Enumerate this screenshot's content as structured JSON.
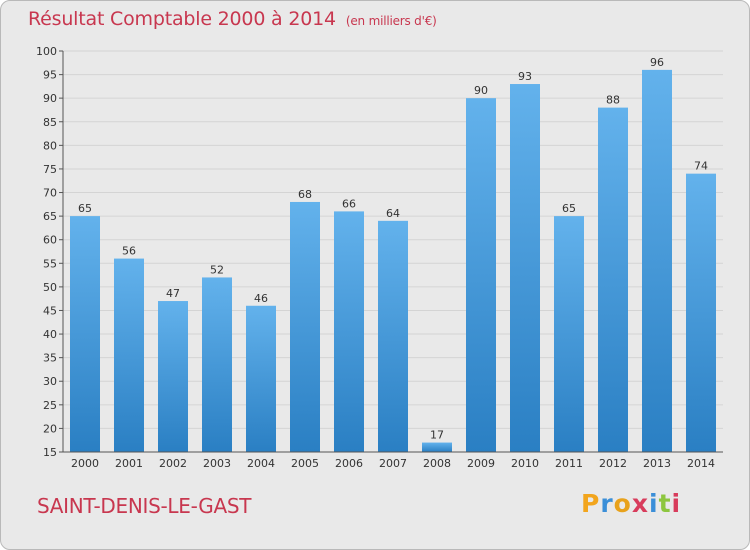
{
  "header": {
    "title": "Résultat Comptable 2000 à 2014",
    "subtitle": "(en milliers d'€)"
  },
  "footer": {
    "location": "SAINT-DENIS-LE-GAST",
    "brand_letters": [
      "P",
      "r",
      "o",
      "x",
      "i",
      "t",
      "i"
    ]
  },
  "colors": {
    "bar_top": "#63b2ec",
    "bar_bottom": "#2a7fc3",
    "accent": "#c8374f"
  },
  "chart_data": {
    "type": "bar",
    "title": "Résultat Comptable 2000 à 2014",
    "subtitle": "(en milliers d'€)",
    "categories": [
      "2000",
      "2001",
      "2002",
      "2003",
      "2004",
      "2005",
      "2006",
      "2007",
      "2008",
      "2009",
      "2010",
      "2011",
      "2012",
      "2013",
      "2014"
    ],
    "values": [
      65,
      56,
      47,
      52,
      46,
      68,
      66,
      64,
      17,
      90,
      93,
      65,
      88,
      96,
      74
    ],
    "ylim": [
      15,
      100
    ],
    "yticks": [
      15,
      20,
      25,
      30,
      35,
      40,
      45,
      50,
      55,
      60,
      65,
      70,
      75,
      80,
      85,
      90,
      95,
      100
    ],
    "grid": true,
    "legend": "none"
  }
}
